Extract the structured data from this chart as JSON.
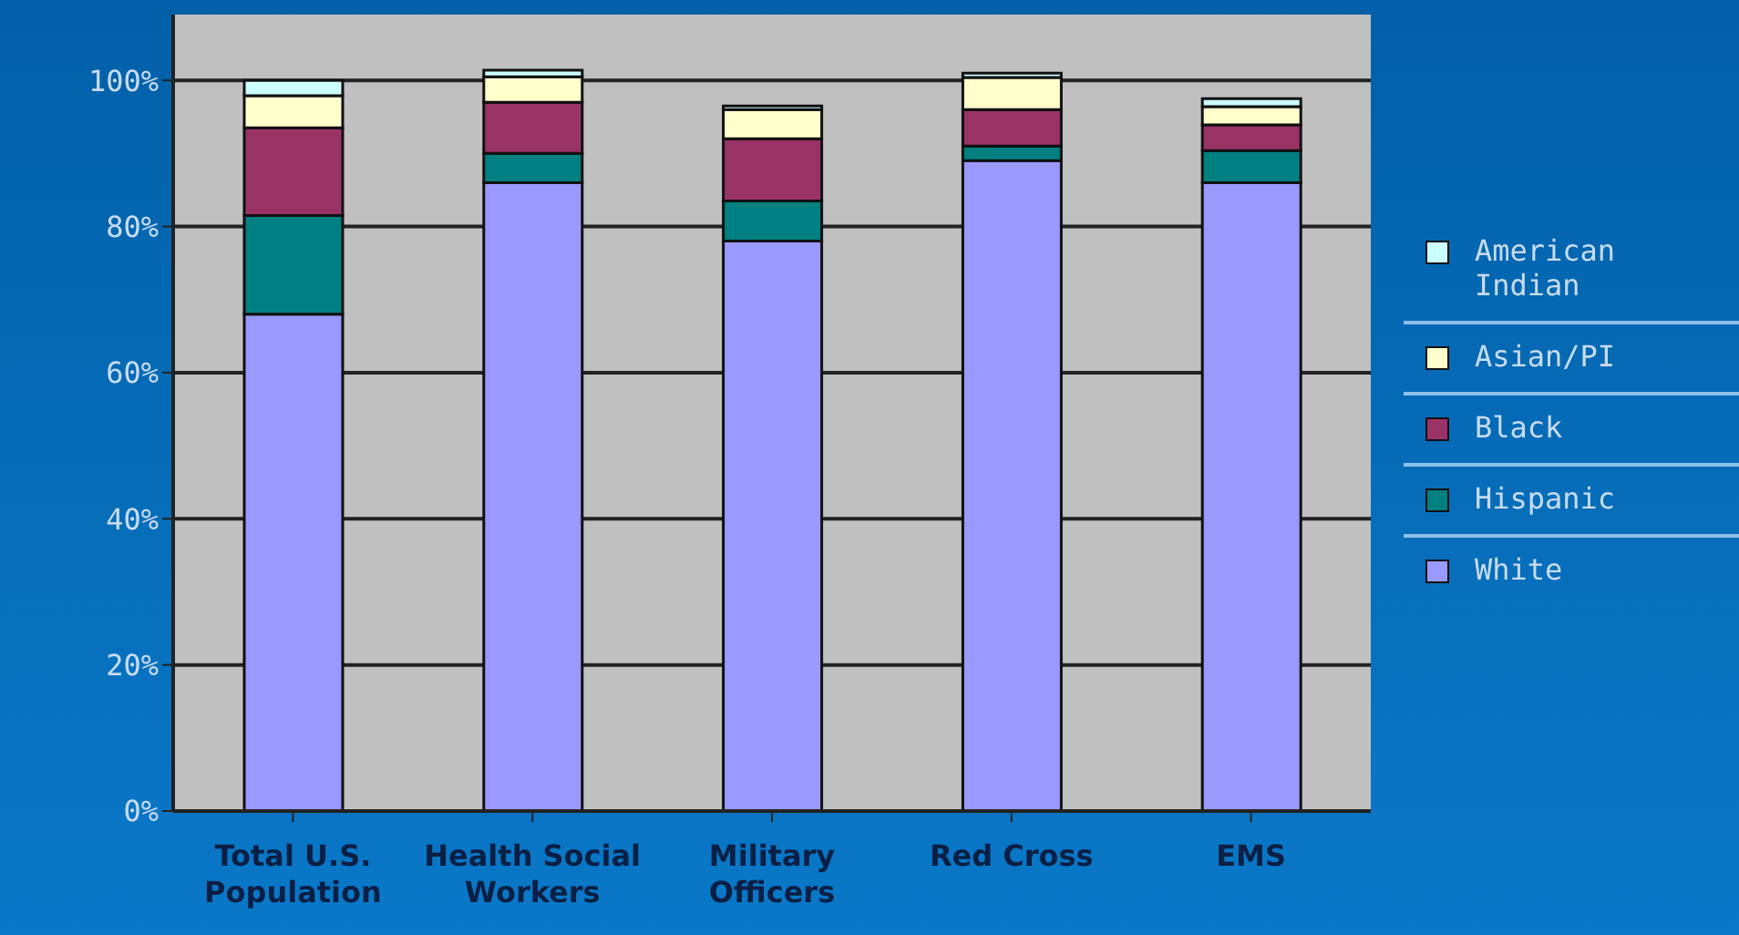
{
  "chart_data": {
    "type": "bar",
    "stacked": true,
    "categories": [
      "Total U.S. Population",
      "Health Social Workers",
      "Military Officers",
      "Red Cross",
      "EMS"
    ],
    "series": [
      {
        "name": "White",
        "color": "#9999ff",
        "values": [
          68,
          86,
          78,
          89,
          86
        ]
      },
      {
        "name": "Hispanic",
        "color": "#008080",
        "values": [
          13.5,
          4,
          5.5,
          2,
          4.4
        ]
      },
      {
        "name": "Black",
        "color": "#993366",
        "values": [
          12,
          7,
          8.5,
          5,
          3.5
        ]
      },
      {
        "name": "Asian/PI",
        "color": "#ffffcc",
        "values": [
          4.4,
          3.5,
          4,
          4.4,
          2.5
        ]
      },
      {
        "name": "American Indian",
        "color": "#ccffff",
        "values": [
          2.1,
          0.9,
          0.5,
          0.6,
          1.1
        ]
      }
    ],
    "ylim": [
      0,
      109
    ],
    "yticks": [
      {
        "value": 0,
        "label": "0%"
      },
      {
        "value": 20,
        "label": "20%"
      },
      {
        "value": 40,
        "label": "40%"
      },
      {
        "value": 60,
        "label": "60%"
      },
      {
        "value": 80,
        "label": "80%"
      },
      {
        "value": 100,
        "label": "100%"
      }
    ],
    "grid": "y",
    "legend": "right"
  }
}
